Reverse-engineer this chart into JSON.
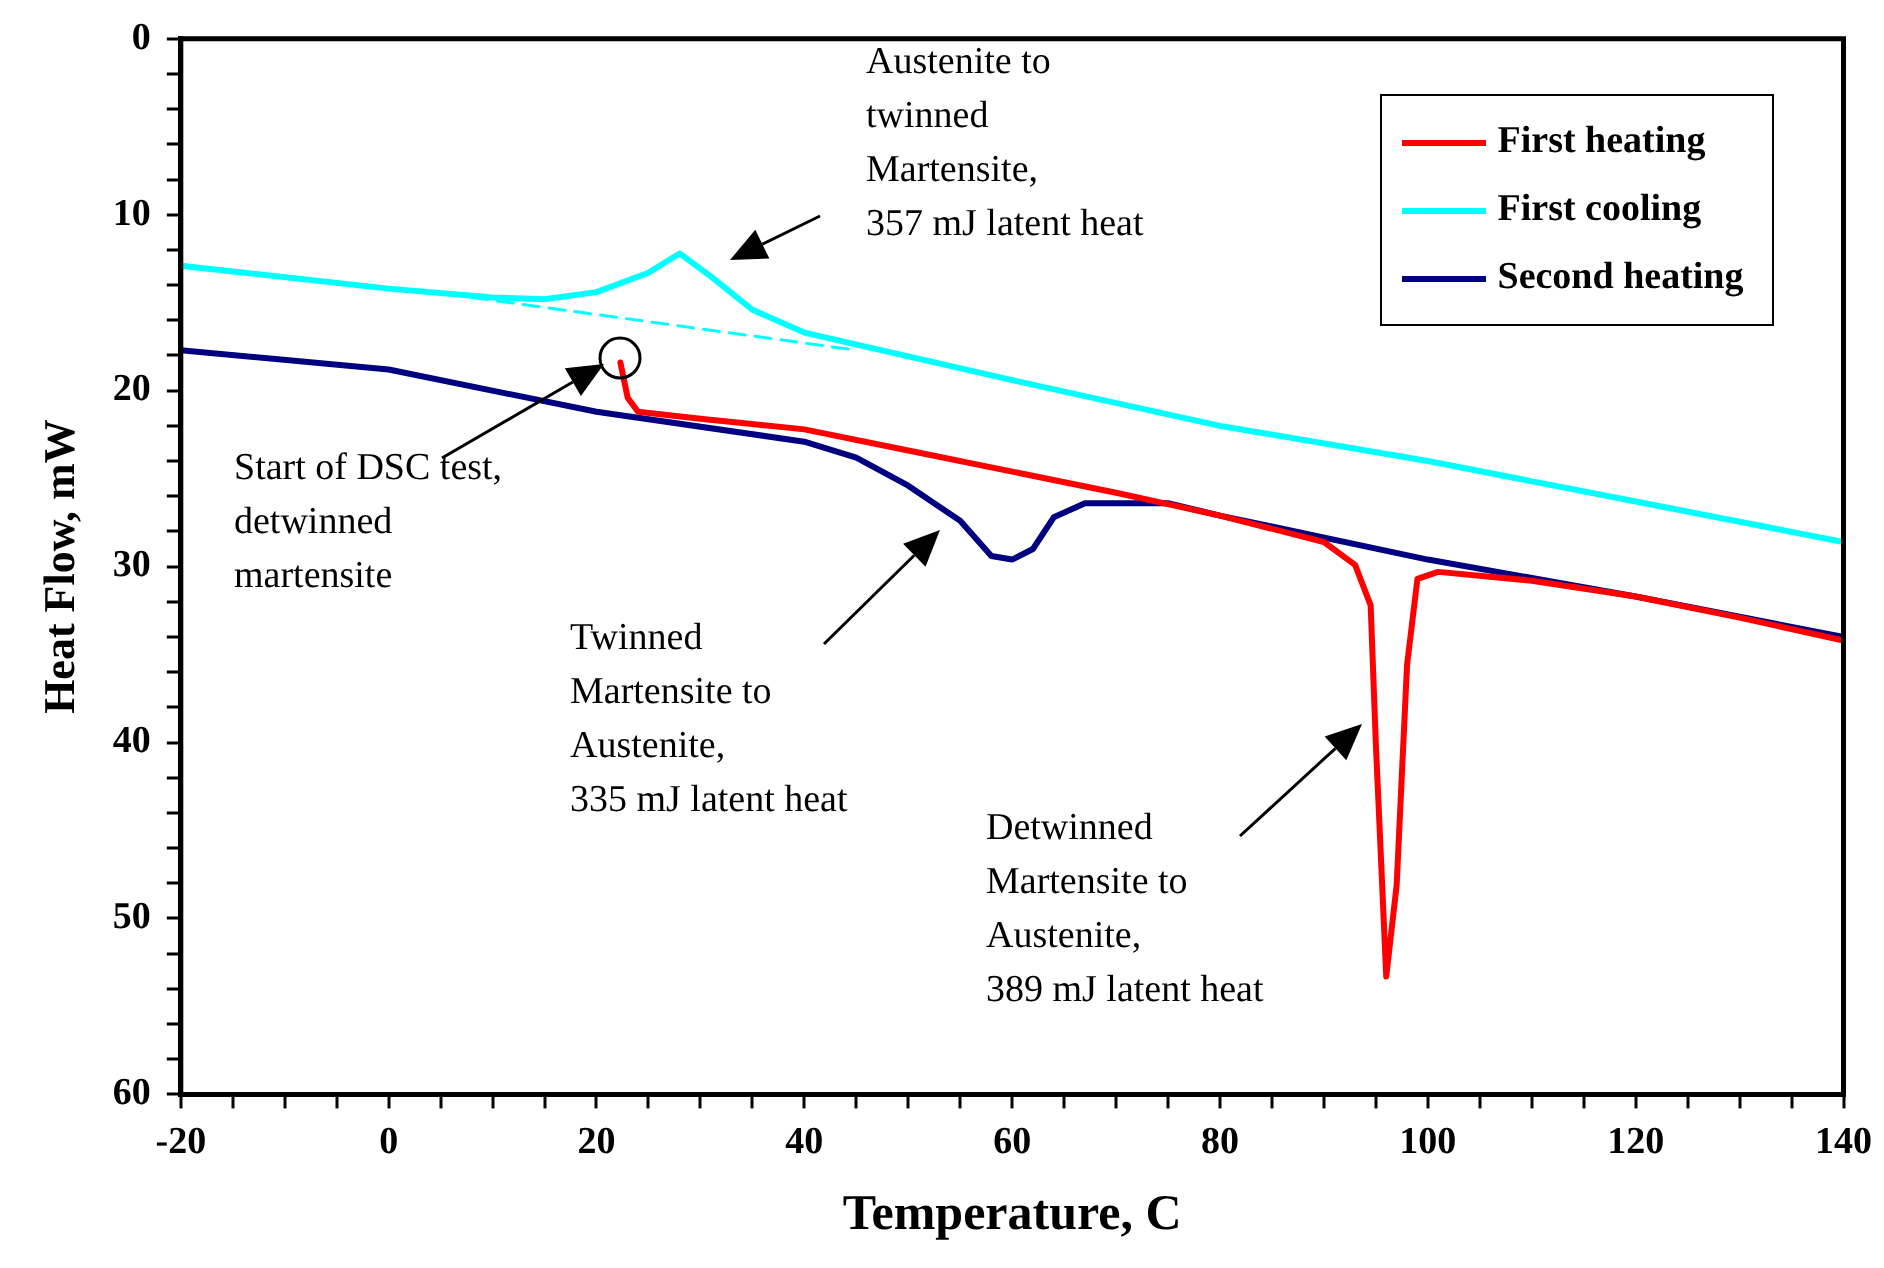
{
  "chart_data": {
    "type": "line",
    "xlabel": "Temperature, C",
    "ylabel": "Heat Flow, mW",
    "xlim": [
      -20,
      140
    ],
    "ylim": [
      60,
      0
    ],
    "xticks": [
      -20,
      {
        "value": -15,
        "label": null
      },
      {
        "value": -10,
        "label": null
      },
      {
        "value": -5,
        "label": null
      },
      0,
      {
        "value": 5,
        "label": null
      },
      {
        "value": 10,
        "label": null
      },
      {
        "value": 15,
        "label": null
      },
      20,
      {
        "value": 25,
        "label": null
      },
      {
        "value": 30,
        "label": null
      },
      {
        "value": 35,
        "label": null
      },
      40,
      {
        "value": 45,
        "label": null
      },
      {
        "value": 50,
        "label": null
      },
      {
        "value": 55,
        "label": null
      },
      60,
      {
        "value": 65,
        "label": null
      },
      {
        "value": 70,
        "label": null
      },
      {
        "value": 75,
        "label": null
      },
      80,
      {
        "value": 85,
        "label": null
      },
      {
        "value": 90,
        "label": null
      },
      {
        "value": 95,
        "label": null
      },
      100,
      {
        "value": 105,
        "label": null
      },
      {
        "value": 110,
        "label": null
      },
      {
        "value": 115,
        "label": null
      },
      120,
      {
        "value": 125,
        "label": null
      },
      {
        "value": 130,
        "label": null
      },
      {
        "value": 135,
        "label": null
      },
      140
    ],
    "yticks": [
      0,
      {
        "value": 2,
        "label": null
      },
      {
        "value": 4,
        "label": null
      },
      {
        "value": 6,
        "label": null
      },
      {
        "value": 8,
        "label": null
      },
      10,
      {
        "value": 12,
        "label": null
      },
      {
        "value": 14,
        "label": null
      },
      {
        "value": 16,
        "label": null
      },
      {
        "value": 18,
        "label": null
      },
      20,
      {
        "value": 22,
        "label": null
      },
      {
        "value": 24,
        "label": null
      },
      {
        "value": 26,
        "label": null
      },
      {
        "value": 28,
        "label": null
      },
      30,
      {
        "value": 32,
        "label": null
      },
      {
        "value": 34,
        "label": null
      },
      {
        "value": 36,
        "label": null
      },
      {
        "value": 38,
        "label": null
      },
      40,
      {
        "value": 42,
        "label": null
      },
      {
        "value": 44,
        "label": null
      },
      {
        "value": 46,
        "label": null
      },
      {
        "value": 48,
        "label": null
      },
      50,
      {
        "value": 52,
        "label": null
      },
      {
        "value": 54,
        "label": null
      },
      {
        "value": 56,
        "label": null
      },
      {
        "value": 58,
        "label": null
      },
      60
    ],
    "grid": false,
    "legend": "top right",
    "marker": "none",
    "line_style": "solid",
    "series": [
      {
        "name": "First heating",
        "color": "#ff0000",
        "x": [
          22.3,
          23,
          24,
          30,
          40,
          50,
          60,
          70,
          80,
          90,
          93,
          94.5,
          95,
          96,
          97,
          98,
          99,
          101,
          110,
          120,
          130,
          140
        ],
        "values": [
          18.4,
          20.4,
          21.2,
          21.6,
          22.2,
          23.4,
          24.6,
          25.8,
          27.1,
          28.6,
          29.9,
          32.2,
          40.1,
          53.3,
          48.1,
          35.6,
          30.7,
          30.3,
          30.8,
          31.7,
          32.9,
          34.2
        ]
      },
      {
        "name": "First cooling",
        "color": "#00ffff",
        "x": [
          -20,
          0,
          10,
          15,
          20,
          25,
          28,
          31,
          35,
          40,
          60,
          80,
          100,
          120,
          140
        ],
        "values": [
          12.9,
          14.2,
          14.7,
          14.8,
          14.4,
          13.3,
          12.2,
          13.5,
          15.4,
          16.7,
          19.4,
          22,
          24,
          26.3,
          28.6
        ]
      },
      {
        "name": "Second heating",
        "color": "#000080",
        "x": [
          -20,
          0,
          20,
          40,
          45,
          50,
          55,
          58,
          60,
          62,
          64,
          67,
          75,
          80,
          100,
          120,
          140
        ],
        "values": [
          17.7,
          18.8,
          21.2,
          22.9,
          23.8,
          25.4,
          27.4,
          29.4,
          29.6,
          29,
          27.2,
          26.4,
          26.4,
          27.1,
          29.6,
          31.7,
          34
        ]
      },
      {
        "color": "#00ffff",
        "line_style": "dashed",
        "x": [
          8,
          45
        ],
        "values": [
          14.7,
          17.7
        ]
      }
    ],
    "annotations": [
      "Austenite to\ntwinned\nMartensite,\n357 mJ latent heat",
      "Start of DSC test,\ndetwinned\nmartensite",
      "Twinned\nMartensite to\nAustenite,\n335 mJ latent heat",
      "Detwinned\nMartensite to\nAustenite,\n389 mJ latent heat"
    ]
  }
}
